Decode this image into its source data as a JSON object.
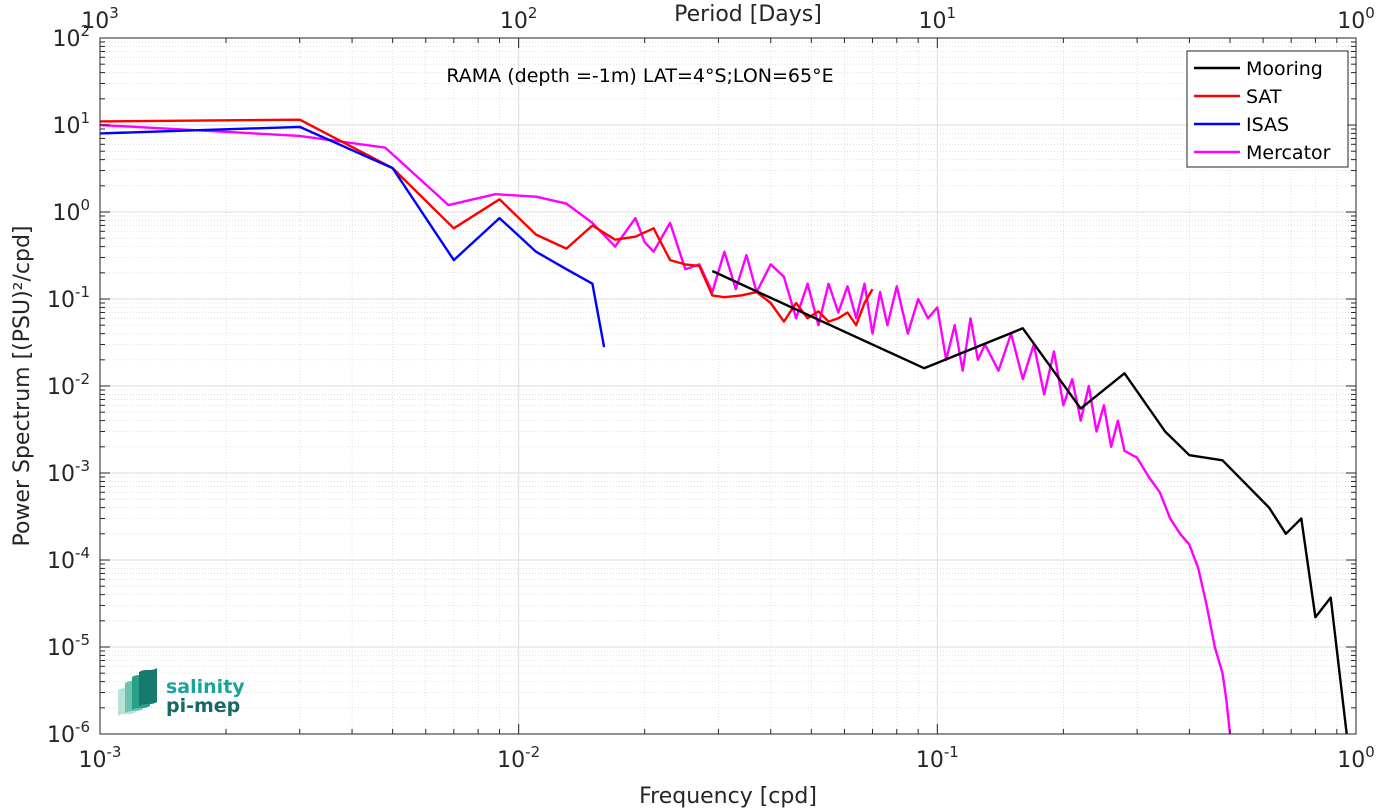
{
  "chart_data": {
    "type": "line",
    "annotation": "RAMA (depth =-1m) LAT=4°S;LON=65°E",
    "xlabel": "Frequency [cpd]",
    "ylabel": "Power Spectrum [(PSU)²/cpd]",
    "top_axis_label": "Period [Days]",
    "xscale": "log",
    "yscale": "log",
    "xlim": [
      0.001,
      1
    ],
    "ylim": [
      1e-06,
      100
    ],
    "grid": true,
    "legend_position": "top-right",
    "x_ticks": [
      {
        "base": "10",
        "exp": "-3"
      },
      {
        "base": "10",
        "exp": "-2"
      },
      {
        "base": "10",
        "exp": "-1"
      },
      {
        "base": "10",
        "exp": "0"
      }
    ],
    "top_ticks": [
      {
        "base": "10",
        "exp": "3"
      },
      {
        "base": "10",
        "exp": "2"
      },
      {
        "base": "10",
        "exp": "1"
      },
      {
        "base": "10",
        "exp": "0"
      }
    ],
    "y_ticks": [
      {
        "base": "10",
        "exp": "-6"
      },
      {
        "base": "10",
        "exp": "-5"
      },
      {
        "base": "10",
        "exp": "-4"
      },
      {
        "base": "10",
        "exp": "-3"
      },
      {
        "base": "10",
        "exp": "-2"
      },
      {
        "base": "10",
        "exp": "-1"
      },
      {
        "base": "10",
        "exp": "0"
      },
      {
        "base": "10",
        "exp": "1"
      },
      {
        "base": "10",
        "exp": "2"
      }
    ],
    "series": [
      {
        "name": "Mooring",
        "color": "#000000",
        "x": [
          0.029,
          0.093,
          0.16,
          0.22,
          0.28,
          0.35,
          0.4,
          0.48,
          0.62,
          0.68,
          0.74,
          0.8,
          0.87,
          0.95
        ],
        "y": [
          0.21,
          0.016,
          0.046,
          0.0055,
          0.014,
          0.003,
          0.0016,
          0.0014,
          0.0004,
          0.0002,
          0.0003,
          2.2e-05,
          3.7e-05,
          1e-06
        ]
      },
      {
        "name": "SAT",
        "color": "#ff0000",
        "x": [
          0.001,
          0.003,
          0.005,
          0.007,
          0.009,
          0.011,
          0.013,
          0.015,
          0.017,
          0.019,
          0.021,
          0.023,
          0.025,
          0.027,
          0.029,
          0.031,
          0.034,
          0.037,
          0.04,
          0.043,
          0.046,
          0.049,
          0.052,
          0.055,
          0.058,
          0.061,
          0.064,
          0.067,
          0.07
        ],
        "y": [
          11,
          11.5,
          3.2,
          0.65,
          1.4,
          0.55,
          0.38,
          0.7,
          0.48,
          0.52,
          0.65,
          0.28,
          0.25,
          0.24,
          0.11,
          0.105,
          0.11,
          0.12,
          0.09,
          0.055,
          0.09,
          0.06,
          0.072,
          0.055,
          0.06,
          0.07,
          0.05,
          0.09,
          0.13
        ]
      },
      {
        "name": "ISAS",
        "color": "#0000ff",
        "x": [
          0.001,
          0.003,
          0.005,
          0.007,
          0.009,
          0.011,
          0.013,
          0.015,
          0.016
        ],
        "y": [
          8,
          9.5,
          3.2,
          0.28,
          0.85,
          0.35,
          0.22,
          0.15,
          0.028
        ]
      },
      {
        "name": "Mercator",
        "color": "#ff00ff",
        "x": [
          0.001,
          0.003,
          0.0048,
          0.0068,
          0.0088,
          0.011,
          0.013,
          0.015,
          0.017,
          0.019,
          0.02,
          0.021,
          0.023,
          0.025,
          0.027,
          0.029,
          0.031,
          0.033,
          0.035,
          0.037,
          0.04,
          0.043,
          0.046,
          0.049,
          0.052,
          0.055,
          0.058,
          0.061,
          0.064,
          0.067,
          0.07,
          0.073,
          0.076,
          0.08,
          0.085,
          0.09,
          0.095,
          0.1,
          0.105,
          0.11,
          0.115,
          0.12,
          0.125,
          0.13,
          0.14,
          0.15,
          0.16,
          0.17,
          0.18,
          0.19,
          0.2,
          0.21,
          0.22,
          0.23,
          0.24,
          0.25,
          0.26,
          0.27,
          0.28,
          0.3,
          0.32,
          0.34,
          0.36,
          0.38,
          0.4,
          0.42,
          0.44,
          0.46,
          0.48,
          0.49,
          0.5
        ],
        "y": [
          10,
          7.5,
          5.5,
          1.2,
          1.6,
          1.5,
          1.25,
          0.75,
          0.4,
          0.85,
          0.45,
          0.35,
          0.75,
          0.22,
          0.25,
          0.12,
          0.35,
          0.13,
          0.32,
          0.12,
          0.25,
          0.18,
          0.06,
          0.15,
          0.05,
          0.15,
          0.07,
          0.14,
          0.06,
          0.15,
          0.04,
          0.12,
          0.05,
          0.14,
          0.04,
          0.1,
          0.06,
          0.08,
          0.02,
          0.05,
          0.015,
          0.06,
          0.02,
          0.03,
          0.015,
          0.04,
          0.012,
          0.03,
          0.008,
          0.025,
          0.006,
          0.012,
          0.004,
          0.01,
          0.003,
          0.006,
          0.002,
          0.004,
          0.0018,
          0.0015,
          0.0009,
          0.0006,
          0.0003,
          0.0002,
          0.00015,
          8e-05,
          3e-05,
          1e-05,
          5e-06,
          2.5e-06,
          1e-06
        ]
      }
    ]
  },
  "logo": {
    "line1": "salinity",
    "line2": "pi-mep",
    "color1": "#1aa39a",
    "color2": "#166a66"
  }
}
